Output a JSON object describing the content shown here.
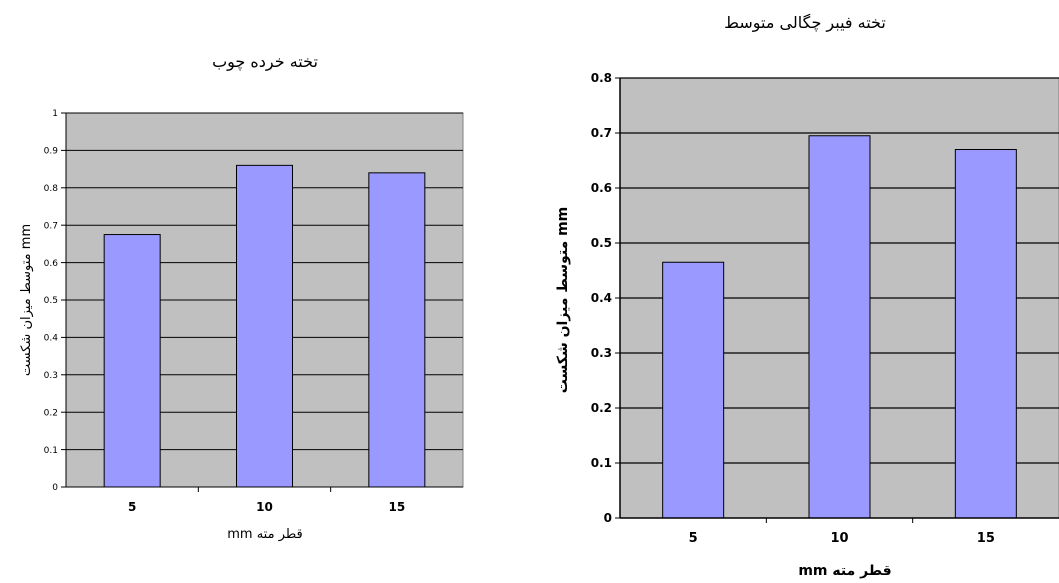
{
  "chart_data": [
    {
      "type": "bar",
      "title": "تخته خرده چوب",
      "xlabel": "قطر مته mm",
      "ylabel": "mm متوسط میزان شکست",
      "categories": [
        "5",
        "10",
        "15"
      ],
      "values": [
        0.675,
        0.86,
        0.84
      ],
      "ylim": [
        0,
        1
      ],
      "yticks": [
        "0",
        "0.1",
        "0.2",
        "0.3",
        "0.4",
        "0.5",
        "0.6",
        "0.7",
        "0.8",
        "0.9",
        "1"
      ],
      "grid": true,
      "colors": {
        "plot_bg": "#c0c0c0",
        "bar_fill": "#9999ff",
        "bar_stroke": "#000000"
      }
    },
    {
      "type": "bar",
      "title": "تخته فیبر چگالی متوسط",
      "xlabel": "قطر مته mm",
      "ylabel": "mm متوسط میزان شکست",
      "categories": [
        "5",
        "10",
        "15"
      ],
      "values": [
        0.465,
        0.695,
        0.67
      ],
      "ylim": [
        0,
        0.8
      ],
      "yticks": [
        "0",
        "0.1",
        "0.2",
        "0.3",
        "0.4",
        "0.5",
        "0.6",
        "0.7",
        "0.8"
      ],
      "grid": true,
      "colors": {
        "plot_bg": "#c0c0c0",
        "bar_fill": "#9999ff",
        "bar_stroke": "#000000"
      }
    }
  ]
}
